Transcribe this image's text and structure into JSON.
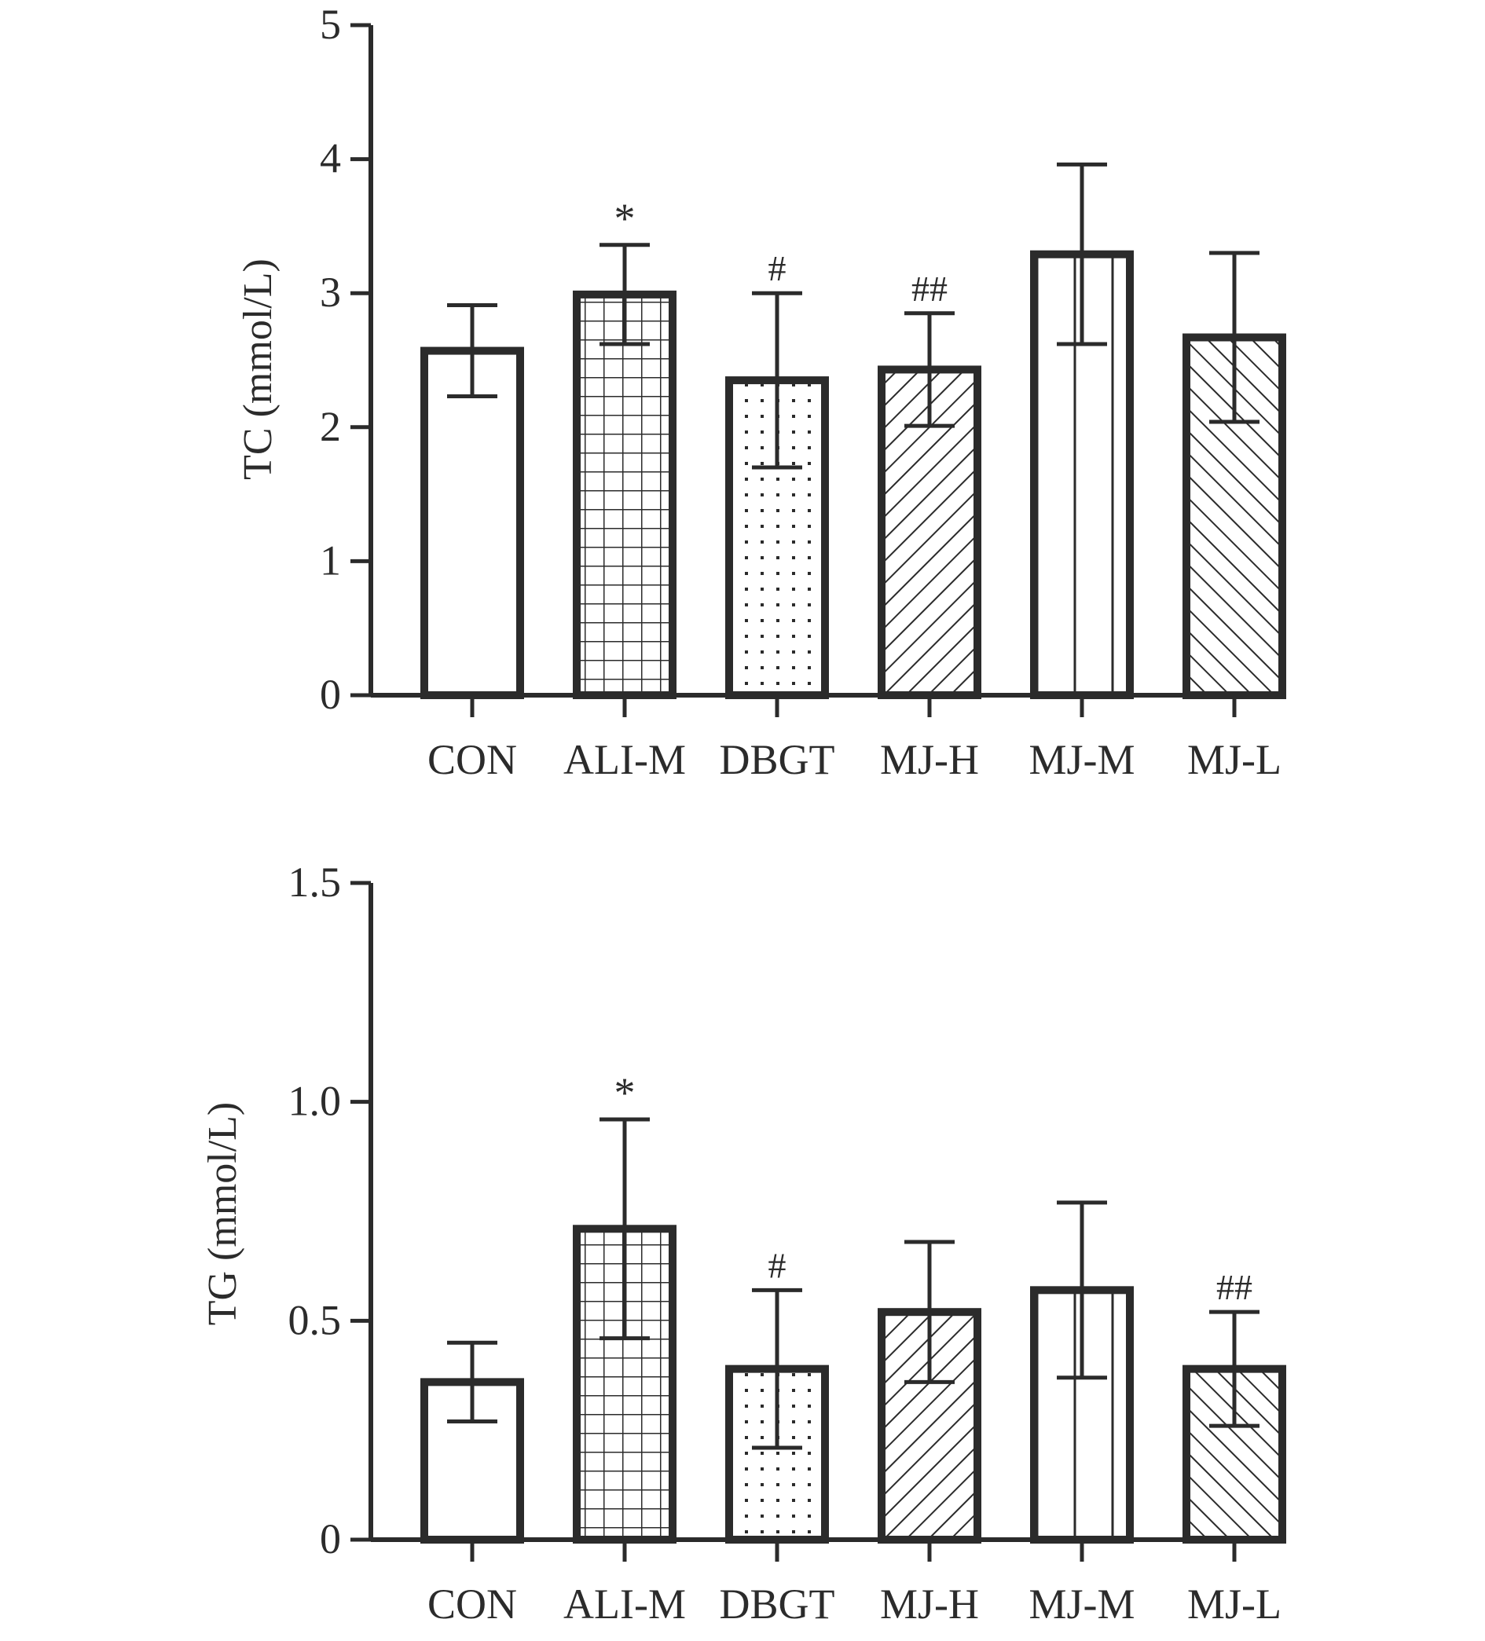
{
  "chart_data": [
    {
      "type": "bar",
      "categories": [
        "CON",
        "ALI-M",
        "DBGT",
        "MJ-H",
        "MJ-M",
        "MJ-L"
      ],
      "ylabel": "TC (mmol/L)",
      "ylim": [
        0,
        5
      ],
      "yticks": [
        "0",
        "1",
        "2",
        "3",
        "4",
        "5"
      ],
      "values": [
        2.57,
        2.99,
        2.35,
        2.43,
        3.29,
        2.67
      ],
      "error": [
        0.34,
        0.37,
        0.65,
        0.42,
        0.67,
        0.63
      ],
      "annotations": [
        "",
        "*",
        "#",
        "##",
        "",
        ""
      ],
      "patterns": [
        "none",
        "grid",
        "dots",
        "diag-right",
        "vertical",
        "diag-left"
      ]
    },
    {
      "type": "bar",
      "categories": [
        "CON",
        "ALI-M",
        "DBGT",
        "MJ-H",
        "MJ-M",
        "MJ-L"
      ],
      "ylabel": "TG (mmol/L)",
      "ylim": [
        0,
        1.5
      ],
      "yticks": [
        "0",
        "0.5",
        "1.0",
        "1.5"
      ],
      "values": [
        0.36,
        0.71,
        0.39,
        0.52,
        0.57,
        0.39
      ],
      "error": [
        0.09,
        0.25,
        0.18,
        0.16,
        0.2,
        0.13
      ],
      "annotations": [
        "",
        "*",
        "#",
        "",
        "",
        "##"
      ],
      "patterns": [
        "none",
        "grid",
        "dots",
        "diag-right",
        "vertical",
        "diag-left"
      ]
    }
  ]
}
